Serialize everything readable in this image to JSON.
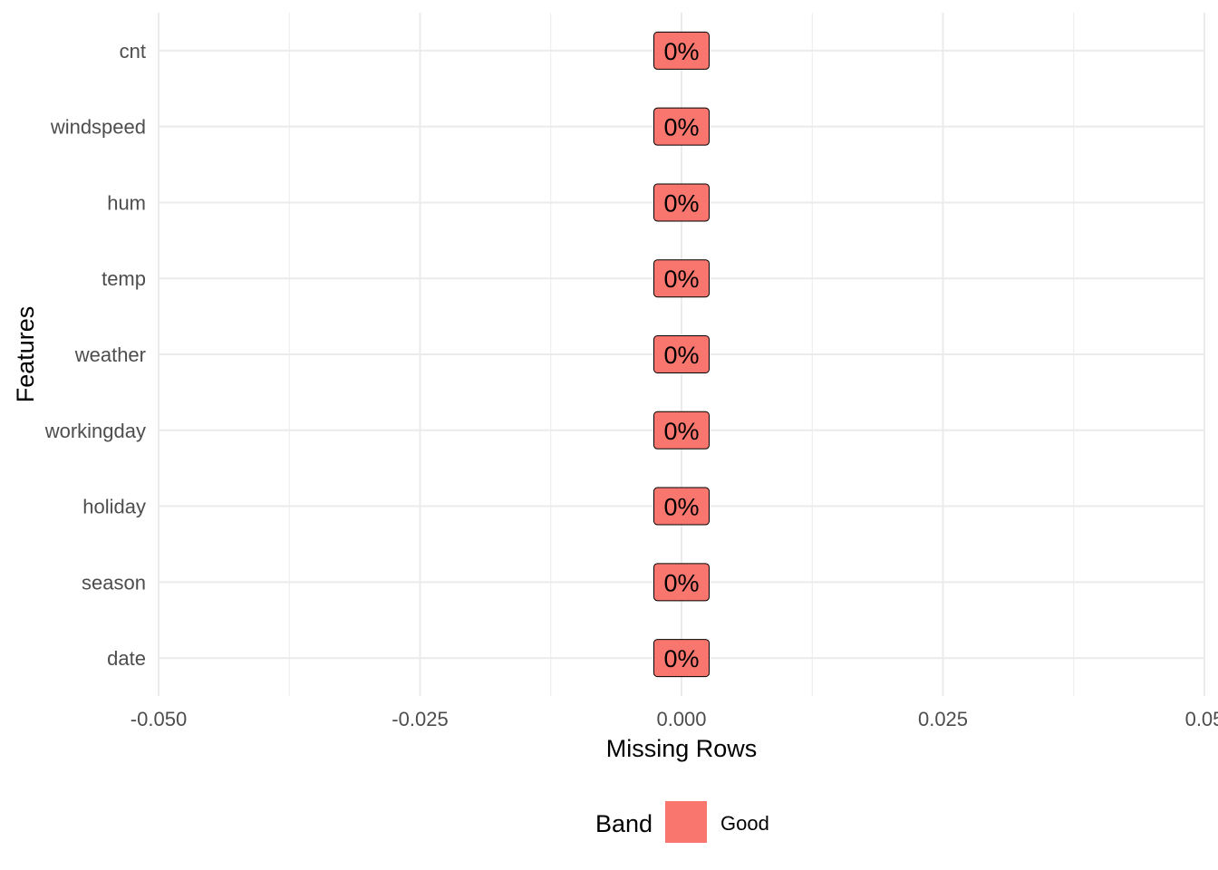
{
  "chart_data": {
    "type": "bar",
    "orientation": "horizontal",
    "categories": [
      "date",
      "season",
      "holiday",
      "workingday",
      "weather",
      "temp",
      "hum",
      "windspeed",
      "cnt"
    ],
    "series": [
      {
        "name": "Good",
        "values": [
          0,
          0,
          0,
          0,
          0,
          0,
          0,
          0,
          0
        ],
        "labels": [
          "0%",
          "0%",
          "0%",
          "0%",
          "0%",
          "0%",
          "0%",
          "0%",
          "0%"
        ],
        "color": "#F8766D"
      }
    ],
    "xlabel": "Missing Rows",
    "ylabel": "Features",
    "xlim": [
      -0.05,
      0.05
    ],
    "x_ticks": [
      -0.05,
      -0.025,
      0,
      0.025,
      0.05
    ],
    "x_tick_labels": [
      "-0.050",
      "-0.025",
      "0.000",
      "0.025",
      "0.05"
    ],
    "grid": true,
    "legend": {
      "title": "Band",
      "entries": [
        {
          "label": "Good",
          "color": "#F8766D"
        }
      ],
      "position": "bottom"
    }
  }
}
